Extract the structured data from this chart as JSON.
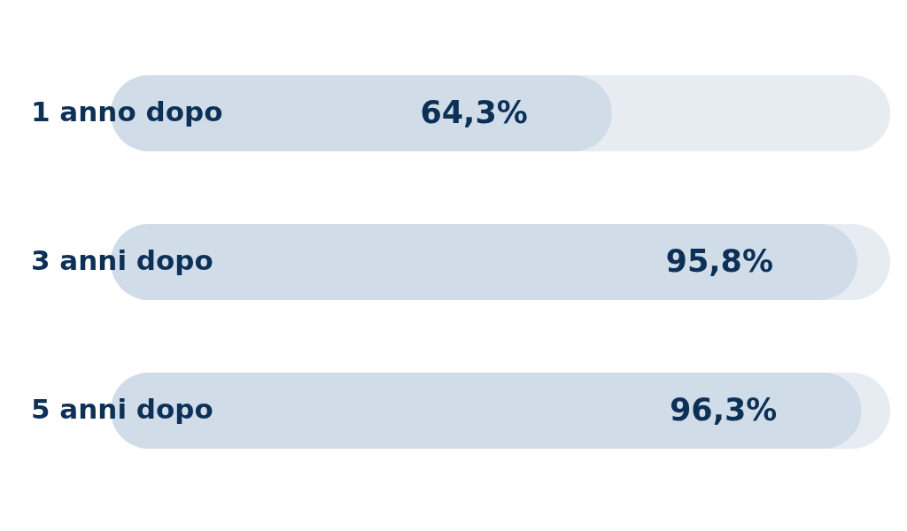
{
  "chart_data": {
    "type": "bar",
    "orientation": "horizontal",
    "categories": [
      "1 anno dopo",
      "3 anni dopo",
      "5 anni dopo"
    ],
    "values": [
      64.3,
      95.8,
      96.3
    ],
    "value_labels": [
      "64,3%",
      "95,8%",
      "96,3%"
    ],
    "color": "#d0dde9",
    "xlim": [
      0,
      100
    ],
    "tick_labels": false
  }
}
